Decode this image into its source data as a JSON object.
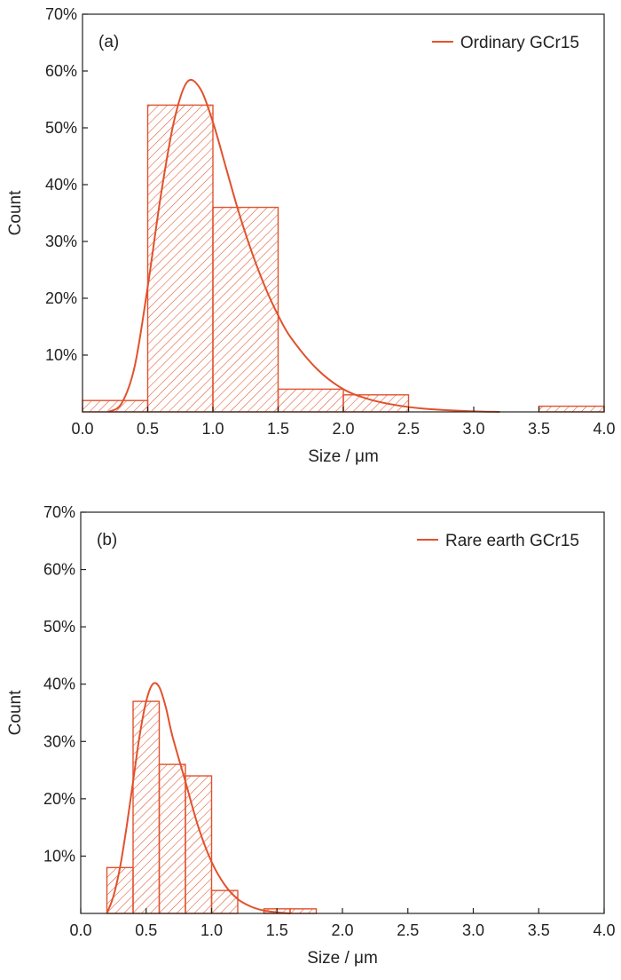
{
  "colors": {
    "accent": "#e0522d",
    "axis": "#222222",
    "background": "#ffffff"
  },
  "chart_data": [
    {
      "type": "bar",
      "panel_label": "(a)",
      "xlabel": "Size / μm",
      "ylabel": "Count",
      "xlim": [
        0,
        4
      ],
      "ylim": [
        0,
        70
      ],
      "x_ticks": [
        0.0,
        0.5,
        1.0,
        1.5,
        2.0,
        2.5,
        3.0,
        3.5,
        4.0
      ],
      "x_tick_labels": [
        "0.0",
        "0.5",
        "1.0",
        "1.5",
        "2.0",
        "2.5",
        "3.0",
        "3.5",
        "4.0"
      ],
      "y_ticks": [
        10,
        20,
        30,
        40,
        50,
        60,
        70
      ],
      "y_tick_labels": [
        "10%",
        "20%",
        "30%",
        "40%",
        "50%",
        "60%",
        "70%"
      ],
      "grid": false,
      "legend_position": "top-right",
      "bins": [
        {
          "start": 0.0,
          "end": 0.5,
          "value": 2
        },
        {
          "start": 0.5,
          "end": 1.0,
          "value": 54
        },
        {
          "start": 1.0,
          "end": 1.5,
          "value": 36
        },
        {
          "start": 1.5,
          "end": 2.0,
          "value": 4
        },
        {
          "start": 2.0,
          "end": 2.5,
          "value": 3
        },
        {
          "start": 2.5,
          "end": 3.0,
          "value": 0
        },
        {
          "start": 3.0,
          "end": 3.5,
          "value": 0
        },
        {
          "start": 3.5,
          "end": 4.0,
          "value": 1
        }
      ],
      "fit": {
        "name": "Ordinary GCr15",
        "x": [
          0.2,
          0.3,
          0.4,
          0.5,
          0.6,
          0.7,
          0.8,
          0.9,
          1.0,
          1.1,
          1.2,
          1.3,
          1.4,
          1.5,
          1.6,
          1.8,
          2.0,
          2.2,
          2.4,
          2.6,
          2.8,
          3.0,
          3.2
        ],
        "y": [
          0,
          1.5,
          8,
          22,
          38,
          51,
          58,
          57,
          51,
          43,
          35,
          28,
          22,
          17,
          13,
          7.5,
          4,
          2.2,
          1.2,
          0.6,
          0.3,
          0.1,
          0
        ]
      }
    },
    {
      "type": "bar",
      "panel_label": "(b)",
      "xlabel": "Size / μm",
      "ylabel": "Count",
      "xlim": [
        0,
        4
      ],
      "ylim": [
        0,
        70
      ],
      "x_ticks": [
        0.0,
        0.5,
        1.0,
        1.5,
        2.0,
        2.5,
        3.0,
        3.5,
        4.0
      ],
      "x_tick_labels": [
        "0.0",
        "0.5",
        "1.0",
        "1.5",
        "2.0",
        "2.5",
        "3.0",
        "3.5",
        "4.0"
      ],
      "y_ticks": [
        10,
        20,
        30,
        40,
        50,
        60,
        70
      ],
      "y_tick_labels": [
        "10%",
        "20%",
        "30%",
        "40%",
        "50%",
        "60%",
        "70%"
      ],
      "grid": false,
      "legend_position": "top-right",
      "bins": [
        {
          "start": 0.2,
          "end": 0.4,
          "value": 8
        },
        {
          "start": 0.4,
          "end": 0.6,
          "value": 37
        },
        {
          "start": 0.6,
          "end": 0.8,
          "value": 26
        },
        {
          "start": 0.8,
          "end": 1.0,
          "value": 24
        },
        {
          "start": 1.0,
          "end": 1.2,
          "value": 4
        },
        {
          "start": 1.2,
          "end": 1.4,
          "value": 0
        },
        {
          "start": 1.4,
          "end": 1.6,
          "value": 0.8
        },
        {
          "start": 1.6,
          "end": 1.8,
          "value": 0.8
        }
      ],
      "fit": {
        "name": "Rare earth GCr15",
        "x": [
          0.2,
          0.25,
          0.3,
          0.35,
          0.4,
          0.45,
          0.5,
          0.55,
          0.6,
          0.65,
          0.7,
          0.8,
          0.9,
          1.0,
          1.1,
          1.2,
          1.3,
          1.4,
          1.5,
          1.6
        ],
        "y": [
          0,
          3,
          8,
          15,
          23,
          31,
          37,
          40,
          39.5,
          36,
          31,
          23,
          15,
          9,
          5,
          2.5,
          1.2,
          0.5,
          0.2,
          0
        ]
      }
    }
  ]
}
